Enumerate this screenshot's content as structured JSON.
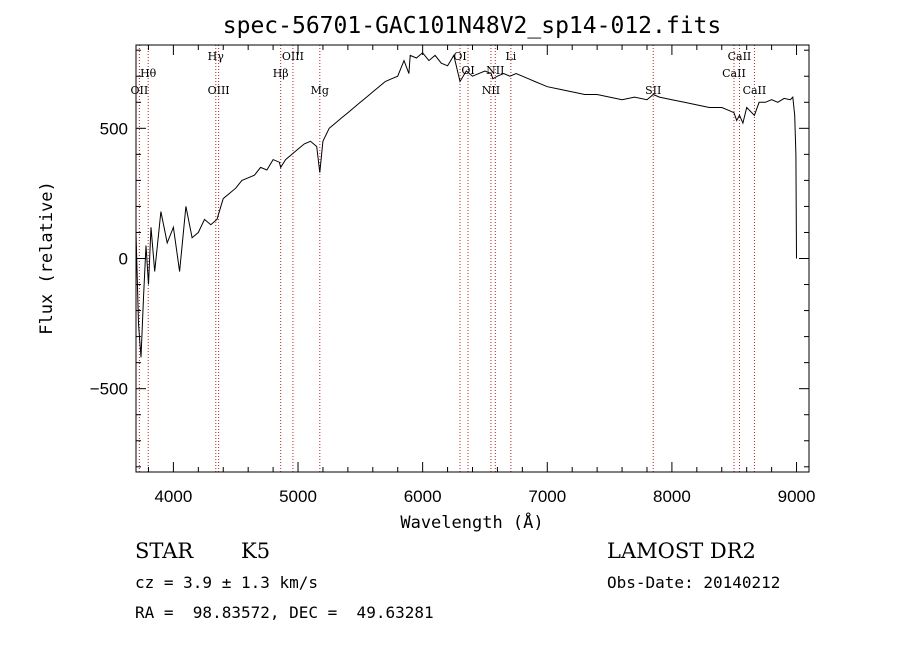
{
  "chart_data": {
    "type": "line",
    "title": "spec-56701-GAC101N48V2_sp14-012.fits",
    "xlabel": "Wavelength (Å)",
    "ylabel": "Flux (relative)",
    "xlim": [
      3700,
      9100
    ],
    "ylim": [
      -820,
      820
    ],
    "x_ticks": [
      4000,
      5000,
      6000,
      7000,
      8000,
      9000
    ],
    "x_tick_labels": [
      "4000",
      "5000",
      "6000",
      "7000",
      "8000",
      "9000"
    ],
    "y_ticks": [
      -500,
      0,
      500
    ],
    "y_tick_labels": [
      "−500",
      "0",
      "500"
    ],
    "grid": false,
    "series": [
      {
        "color": "#000000",
        "x": [
          3700,
          3720,
          3740,
          3760,
          3780,
          3800,
          3820,
          3850,
          3900,
          3950,
          4000,
          4050,
          4100,
          4150,
          4200,
          4250,
          4300,
          4350,
          4400,
          4450,
          4500,
          4550,
          4600,
          4650,
          4700,
          4750,
          4800,
          4850,
          4861,
          4900,
          4950,
          5000,
          5050,
          5100,
          5150,
          5175,
          5200,
          5250,
          5300,
          5350,
          5400,
          5450,
          5500,
          5550,
          5600,
          5650,
          5700,
          5750,
          5800,
          5850,
          5890,
          5900,
          5950,
          6000,
          6050,
          6100,
          6150,
          6200,
          6250,
          6300,
          6350,
          6400,
          6450,
          6500,
          6550,
          6563,
          6600,
          6650,
          6700,
          6750,
          6800,
          6850,
          6900,
          6950,
          7000,
          7100,
          7200,
          7300,
          7400,
          7500,
          7600,
          7700,
          7800,
          7850,
          7900,
          8000,
          8100,
          8200,
          8300,
          8400,
          8450,
          8498,
          8520,
          8542,
          8570,
          8600,
          8662,
          8700,
          8750,
          8800,
          8850,
          8900,
          8950,
          8970,
          8985,
          8995,
          9000
        ],
        "y": [
          100,
          -250,
          -380,
          -150,
          50,
          -100,
          120,
          -50,
          180,
          60,
          120,
          -50,
          200,
          80,
          100,
          150,
          130,
          150,
          230,
          250,
          270,
          300,
          310,
          320,
          350,
          340,
          380,
          370,
          350,
          380,
          400,
          420,
          440,
          450,
          430,
          330,
          450,
          500,
          520,
          540,
          560,
          580,
          600,
          620,
          640,
          660,
          680,
          690,
          700,
          760,
          710,
          780,
          770,
          790,
          760,
          780,
          750,
          740,
          780,
          680,
          720,
          700,
          710,
          720,
          710,
          690,
          700,
          710,
          700,
          710,
          700,
          690,
          680,
          670,
          660,
          650,
          640,
          630,
          630,
          620,
          610,
          620,
          610,
          630,
          620,
          610,
          600,
          590,
          580,
          580,
          570,
          560,
          530,
          550,
          520,
          580,
          550,
          600,
          600,
          610,
          600,
          615,
          610,
          620,
          550,
          400,
          0
        ]
      }
    ],
    "lines": [
      {
        "label": "OII",
        "wavelength": 3727,
        "row": 3
      },
      {
        "label": "Hθ",
        "wavelength": 3798,
        "row": 2
      },
      {
        "label": "Hγ",
        "wavelength": 4340,
        "row": 0
      },
      {
        "label": "OIII",
        "wavelength": 4363,
        "row": 3
      },
      {
        "label": "Hβ",
        "wavelength": 4861,
        "row": 2
      },
      {
        "label": "OIII",
        "wavelength": 4959,
        "row": 0
      },
      {
        "label": "Mg",
        "wavelength": 5175,
        "row": 3
      },
      {
        "label": "OI",
        "wavelength": 6300,
        "row": 0
      },
      {
        "label": "OI",
        "wavelength": 6364,
        "row": 1
      },
      {
        "label": "NII",
        "wavelength": 6548,
        "row": 3
      },
      {
        "label": "NII",
        "wavelength": 6583,
        "row": 1
      },
      {
        "label": "Li",
        "wavelength": 6708,
        "row": 0
      },
      {
        "label": "SII",
        "wavelength": 7850,
        "row": 3
      },
      {
        "label": "CaII",
        "wavelength": 8498,
        "row": 2
      },
      {
        "label": "CaII",
        "wavelength": 8542,
        "row": 0
      },
      {
        "label": "CaII",
        "wavelength": 8662,
        "row": 3
      }
    ]
  },
  "info": {
    "object_class": "STAR",
    "subclass": "K5",
    "cz": "cz = 3.9 ± 1.3 km/s",
    "coords": "RA =  98.83572, DEC =  49.63281",
    "survey": "LAMOST DR2",
    "obs_date": "Obs-Date: 20140212"
  }
}
